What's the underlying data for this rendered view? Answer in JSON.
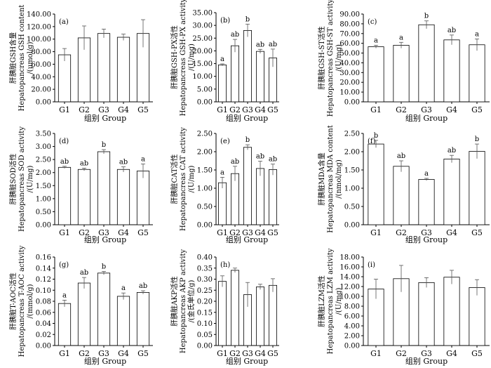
{
  "figure": {
    "xlabel": "组别 Group",
    "groups": [
      "G1",
      "G2",
      "G3",
      "G4",
      "G5"
    ]
  },
  "chart_data": [
    {
      "type": "bar",
      "tag": "(a)",
      "ylabel_lines": [
        "肝胰脏GSH含量",
        "Hepatopancreas GSH content",
        "/(μmol/g)"
      ],
      "categories": [
        "G1",
        "G2",
        "G3",
        "G4",
        "G5"
      ],
      "values": [
        75.0,
        102.0,
        109.0,
        103.0,
        109.0
      ],
      "errors": [
        10.0,
        19.0,
        7.0,
        5.0,
        22.0
      ],
      "letters": [
        "",
        "",
        "",
        "",
        ""
      ],
      "ylim": [
        0,
        140
      ],
      "yticks": [
        "0.00",
        "20.00",
        "40.00",
        "60.00",
        "80.00",
        "100.00",
        "120.00",
        "140.00"
      ]
    },
    {
      "type": "bar",
      "tag": "(b)",
      "ylabel_lines": [
        "肝胰脏GSH-PX活性",
        "Hepatopancreas GSH-PX activity",
        "/(U/mg)"
      ],
      "categories": [
        "G1",
        "G2",
        "G3",
        "G4",
        "G5"
      ],
      "values": [
        14.5,
        22.0,
        28.0,
        19.8,
        17.2
      ],
      "errors": [
        0.4,
        2.5,
        2.5,
        0.8,
        3.5
      ],
      "letters": [
        "a",
        "ab",
        "b",
        "ab",
        "ab"
      ],
      "ylim": [
        0,
        35
      ],
      "yticks": [
        "0.00",
        "5.00",
        "10.00",
        "15.00",
        "20.00",
        "25.00",
        "30.00",
        "35.00"
      ]
    },
    {
      "type": "bar",
      "tag": "(c)",
      "ylabel_lines": [
        "肝胰脏GSH-ST活性",
        "Hepatopancreas GSH-ST activity",
        "/(U/mg)"
      ],
      "categories": [
        "G1",
        "G2",
        "G3",
        "G4",
        "G5"
      ],
      "values": [
        56.5,
        58.0,
        79.0,
        63.5,
        58.5
      ],
      "errors": [
        1.5,
        3.0,
        4.0,
        5.0,
        6.0
      ],
      "letters": [
        "a",
        "a",
        "b",
        "ab",
        "a"
      ],
      "ylim": [
        0,
        90
      ],
      "yticks": [
        "0.00",
        "10.00",
        "20.00",
        "30.00",
        "40.00",
        "50.00",
        "60.00",
        "70.00",
        "80.00",
        "90.00"
      ]
    },
    {
      "type": "bar",
      "tag": "(d)",
      "ylabel_lines": [
        "肝胰脏SOD活性",
        "Hepatopancreas SOD activity",
        "/(U/mg)"
      ],
      "categories": [
        "G1",
        "G2",
        "G3",
        "G4",
        "G5"
      ],
      "values": [
        2.2,
        2.12,
        2.8,
        2.12,
        2.06
      ],
      "errors": [
        0.04,
        0.05,
        0.08,
        0.1,
        0.27
      ],
      "letters": [
        "ab",
        "ab",
        "b",
        "ab",
        "a"
      ],
      "ylim": [
        0,
        3.5
      ],
      "yticks": [
        "0.00",
        "0.50",
        "1.00",
        "1.50",
        "2.00",
        "2.50",
        "3.00",
        "3.50"
      ]
    },
    {
      "type": "bar",
      "tag": "(e)",
      "ylabel_lines": [
        "肝胰脏CAT活性",
        "Hepatopancreas CAT activity",
        "/(U/mg)"
      ],
      "categories": [
        "G1",
        "G2",
        "G3",
        "G4",
        "G5"
      ],
      "values": [
        1.15,
        1.4,
        2.12,
        1.54,
        1.51
      ],
      "errors": [
        0.15,
        0.2,
        0.07,
        0.2,
        0.15
      ],
      "letters": [
        "a",
        "ab",
        "b",
        "ab",
        "ab"
      ],
      "ylim": [
        0,
        2.5
      ],
      "yticks": [
        "0.00",
        "0.50",
        "1.00",
        "1.50",
        "2.00",
        "2.50"
      ]
    },
    {
      "type": "bar",
      "tag": "(f)",
      "ylabel_lines": [
        "肝胰脏MDA含量",
        "Hepatopancreas MDA content",
        "/(nmol/mg)"
      ],
      "categories": [
        "G1",
        "G2",
        "G3",
        "G4",
        "G5"
      ],
      "values": [
        2.21,
        1.6,
        1.24,
        1.8,
        2.01
      ],
      "errors": [
        0.1,
        0.15,
        0.03,
        0.1,
        0.2
      ],
      "letters": [
        "b",
        "ab",
        "a",
        "ab",
        "b"
      ],
      "ylim": [
        0,
        2.5
      ],
      "yticks": [
        "0.00",
        "0.50",
        "1.00",
        "1.50",
        "2.00",
        "2.50"
      ]
    },
    {
      "type": "bar",
      "tag": "(g)",
      "ylabel_lines": [
        "肝胰脏T-AOC活性",
        "Hepatopancreas T-AOC activity",
        "/(mmol/g)"
      ],
      "categories": [
        "G1",
        "G2",
        "G3",
        "G4",
        "G5"
      ],
      "values": [
        0.076,
        0.113,
        0.131,
        0.089,
        0.096
      ],
      "errors": [
        0.006,
        0.01,
        0.003,
        0.006,
        0.003
      ],
      "letters": [
        "a",
        "ab",
        "b",
        "a",
        "ab"
      ],
      "ylim": [
        0,
        0.16
      ],
      "yticks": [
        "0.00",
        "0.02",
        "0.04",
        "0.06",
        "0.08",
        "0.10",
        "0.12",
        "0.14",
        "0.16"
      ]
    },
    {
      "type": "bar",
      "tag": "(h)",
      "ylabel_lines": [
        "肝胰脏AKP活性",
        "Hepatopancreas AKP activity",
        "/(金氏单位/g)"
      ],
      "categories": [
        "G1",
        "G2",
        "G3",
        "G4",
        "G5"
      ],
      "values": [
        0.29,
        0.34,
        0.23,
        0.265,
        0.272
      ],
      "errors": [
        0.025,
        0.01,
        0.055,
        0.012,
        0.03
      ],
      "letters": [
        "",
        "",
        "",
        "",
        ""
      ],
      "ylim": [
        0,
        0.4
      ],
      "yticks": [
        "0.00",
        "0.05",
        "0.10",
        "0.15",
        "0.20",
        "0.25",
        "0.30",
        "0.35",
        "0.40"
      ]
    },
    {
      "type": "bar",
      "tag": "(i)",
      "ylabel_lines": [
        "肝胰脏LZM活性",
        "Hepatopancreas LZM activity",
        "/(U/mg)"
      ],
      "categories": [
        "G1",
        "G2",
        "G3",
        "G4",
        "G5"
      ],
      "values": [
        11.5,
        13.6,
        12.8,
        13.9,
        11.8
      ],
      "errors": [
        2.0,
        2.7,
        1.0,
        1.4,
        1.6
      ],
      "letters": [
        "",
        "",
        "",
        "",
        ""
      ],
      "ylim": [
        0,
        18
      ],
      "yticks": [
        "0.00",
        "2.00",
        "4.00",
        "6.00",
        "8.00",
        "10.00",
        "12.00",
        "14.00",
        "16.00",
        "18.00"
      ]
    }
  ]
}
